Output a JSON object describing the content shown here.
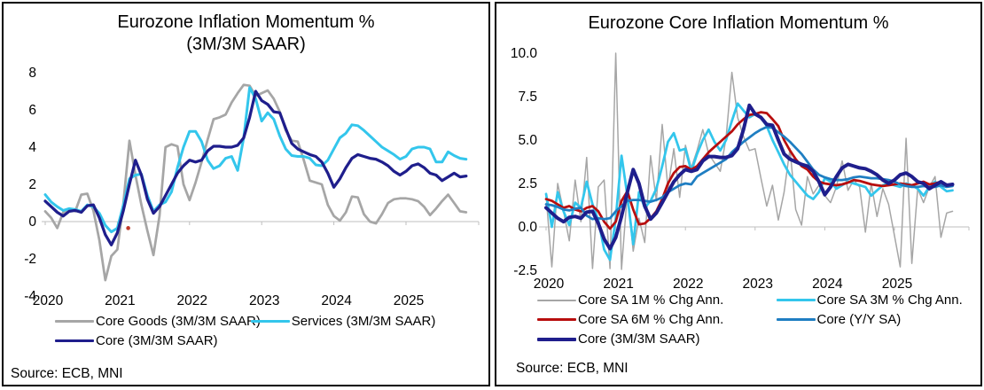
{
  "source_label": "Source: ECB, MNI",
  "chart_data": [
    {
      "type": "line",
      "title": "Eurozone Inflation Momentum %",
      "subtitle": "(3M/3M SAAR)",
      "source": "Source: ECB, MNI",
      "x_start_year": 2020,
      "x_frequency": "monthly",
      "xticks": [
        "2020",
        "2021",
        "2022",
        "2023",
        "2024",
        "2025"
      ],
      "ylim": [
        -4,
        8
      ],
      "yticks": [
        8,
        6,
        4,
        2,
        0,
        -2,
        -4
      ],
      "ytick_labels": [
        "8",
        "6",
        "4",
        "2",
        "0",
        "-2",
        "-4"
      ],
      "axis_color": "#BFBFBF",
      "legend_position": "bottom",
      "grid": false,
      "marker_point": {
        "x_year": 2021.15,
        "value": -0.35,
        "color": "#C0392B",
        "name": "red-dot-marker"
      },
      "series": [
        {
          "name": "Core Goods (3M/3M SAAR)",
          "color": "#A6A6A6",
          "width": 2.75,
          "values": [
            0.55,
            0.2,
            -0.35,
            0.5,
            0.7,
            0.55,
            1.45,
            1.5,
            0.6,
            -1.0,
            -3.15,
            -1.85,
            -1.5,
            1.0,
            4.35,
            2.5,
            0.9,
            -0.5,
            -1.8,
            0.3,
            4.0,
            4.15,
            4.05,
            2.0,
            1.15,
            2.1,
            3.2,
            4.4,
            5.5,
            5.6,
            5.75,
            6.4,
            6.9,
            7.35,
            7.3,
            6.75,
            6.9,
            7.05,
            6.6,
            5.9,
            4.9,
            4.35,
            4.3,
            3.3,
            2.2,
            2.1,
            2.0,
            0.9,
            0.3,
            0.05,
            0.5,
            1.35,
            1.3,
            0.4,
            0.0,
            -0.1,
            0.4,
            1.0,
            1.2,
            1.25,
            1.25,
            1.2,
            1.1,
            0.8,
            0.35,
            0.7,
            1.1,
            1.45,
            1.0,
            0.55,
            0.5
          ]
        },
        {
          "name": "Services (3M/3M SAAR)",
          "color": "#33C6EC",
          "width": 3,
          "values": [
            1.45,
            1.05,
            0.8,
            0.6,
            0.7,
            0.65,
            0.55,
            0.9,
            0.8,
            0.45,
            -0.2,
            -0.55,
            -0.35,
            0.9,
            2.3,
            2.5,
            2.55,
            1.4,
            0.55,
            0.9,
            1.05,
            1.6,
            2.9,
            4.0,
            4.85,
            4.85,
            4.3,
            3.3,
            2.85,
            3.0,
            3.4,
            3.5,
            2.75,
            4.5,
            7.2,
            6.6,
            5.4,
            5.85,
            5.5,
            4.6,
            3.9,
            3.55,
            3.5,
            3.5,
            3.4,
            3.05,
            3.0,
            3.3,
            3.9,
            4.5,
            4.75,
            5.2,
            5.15,
            4.9,
            4.6,
            4.3,
            4.0,
            3.8,
            3.6,
            3.35,
            3.5,
            3.9,
            4.0,
            4.0,
            3.9,
            3.2,
            3.2,
            3.75,
            3.55,
            3.4,
            3.35
          ]
        },
        {
          "name": "Core (3M/3M SAAR)",
          "color": "#1F1E8C",
          "width": 3.25,
          "values": [
            1.1,
            0.8,
            0.5,
            0.3,
            0.55,
            0.6,
            0.5,
            0.85,
            0.9,
            0.2,
            -0.7,
            -1.25,
            -0.6,
            0.6,
            2.0,
            3.3,
            2.5,
            1.2,
            0.45,
            0.8,
            1.4,
            2.0,
            2.6,
            3.0,
            3.3,
            3.2,
            3.3,
            3.8,
            4.05,
            4.05,
            4.0,
            4.0,
            4.1,
            4.5,
            5.6,
            7.0,
            6.5,
            6.3,
            5.9,
            5.85,
            5.0,
            4.2,
            3.9,
            3.75,
            3.6,
            3.5,
            3.2,
            2.6,
            1.85,
            2.3,
            2.9,
            3.4,
            3.6,
            3.5,
            3.4,
            3.35,
            3.2,
            3.0,
            2.7,
            2.5,
            2.7,
            3.0,
            3.1,
            2.9,
            2.6,
            2.5,
            2.2,
            2.4,
            2.6,
            2.4,
            2.45
          ]
        }
      ]
    },
    {
      "type": "line",
      "title": "Eurozone Core Inflation Momentum %",
      "subtitle": "",
      "source": "Source: ECB, MNI",
      "x_start_year": 2020,
      "x_frequency": "monthly",
      "xticks": [
        "2020",
        "2021",
        "2022",
        "2023",
        "2024",
        "2025"
      ],
      "ylim": [
        -2.5,
        10
      ],
      "yticks": [
        10,
        7.5,
        5,
        2.5,
        0,
        -2.5
      ],
      "ytick_labels": [
        "10.0",
        "7.5",
        "5.0",
        "2.5",
        "0.0",
        "-2.5"
      ],
      "axis_color": "#BFBFBF",
      "legend_position": "bottom",
      "grid": false,
      "series": [
        {
          "name": "Core SA 1M % Chg Ann.",
          "color": "#A6A6A6",
          "width": 1.5,
          "values": [
            1.8,
            -2.3,
            2.5,
            0.9,
            -0.8,
            2.7,
            0.3,
            4.0,
            -2.4,
            2.3,
            2.7,
            -2.4,
            10.0,
            -2.45,
            2.0,
            -1.4,
            0.5,
            -0.9,
            4.1,
            1.5,
            5.9,
            2.2,
            4.5,
            1.7,
            4.7,
            3.4,
            4.4,
            5.6,
            4.2,
            3.7,
            3.2,
            5.1,
            8.9,
            6.3,
            5.2,
            4.4,
            4.5,
            2.8,
            1.2,
            2.4,
            0.4,
            2.0,
            4.5,
            1.0,
            0.1,
            2.9,
            1.9,
            2.4,
            1.8,
            1.4,
            2.3,
            3.8,
            2.1,
            2.7,
            2.3,
            -0.3,
            2.5,
            0.6,
            2.2,
            1.3,
            -0.5,
            -2.3,
            5.1,
            -2.1,
            2.2,
            1.4,
            2.3,
            2.9,
            -0.6,
            0.8,
            0.9
          ]
        },
        {
          "name": "Core SA 3M % Chg Ann.",
          "color": "#33C6EC",
          "width": 2.75,
          "values": [
            1.9,
            0.0,
            2.0,
            0.9,
            0.1,
            1.4,
            1.1,
            2.6,
            1.3,
            0.4,
            -1.3,
            -1.9,
            0.5,
            4.1,
            1.8,
            -1.0,
            2.0,
            1.1,
            1.5,
            2.2,
            3.5,
            4.9,
            5.4,
            4.4,
            4.5,
            3.2,
            4.2,
            5.0,
            5.6,
            4.9,
            4.4,
            5.0,
            6.1,
            7.1,
            6.7,
            6.3,
            6.5,
            6.3,
            5.8,
            5.0,
            4.3,
            3.6,
            3.0,
            2.6,
            2.2,
            1.8,
            1.6,
            2.0,
            2.8,
            2.6,
            2.2,
            2.4,
            2.6,
            2.5,
            2.4,
            2.3,
            1.8,
            2.1,
            2.4,
            2.5,
            2.4,
            2.3,
            2.5,
            2.4,
            2.2,
            1.8,
            2.3,
            2.6,
            2.3,
            2.05,
            2.1
          ]
        },
        {
          "name": "Core SA 6M % Chg Ann.",
          "color": "#B80E0E",
          "width": 2.75,
          "values": [
            1.6,
            1.5,
            1.3,
            1.1,
            1.2,
            1.0,
            0.9,
            1.1,
            1.2,
            0.9,
            0.3,
            -0.1,
            0.3,
            1.5,
            2.05,
            1.0,
            0.15,
            0.2,
            0.5,
            0.9,
            1.6,
            2.5,
            3.1,
            3.45,
            3.5,
            3.3,
            3.5,
            3.9,
            4.3,
            4.6,
            4.9,
            5.2,
            5.5,
            5.9,
            6.2,
            6.45,
            6.5,
            6.6,
            6.55,
            6.2,
            5.8,
            5.0,
            4.4,
            3.9,
            3.5,
            3.3,
            2.9,
            2.6,
            2.5,
            2.45,
            2.4,
            2.45,
            2.55,
            2.7,
            2.65,
            2.55,
            2.45,
            2.4,
            2.35,
            2.4,
            2.45,
            2.5,
            2.45,
            2.4,
            2.5,
            2.6,
            2.45,
            2.5,
            2.6,
            2.4,
            2.45
          ]
        },
        {
          "name": "Core (Y/Y SA)",
          "color": "#1F7EC2",
          "width": 2.75,
          "values": [
            1.3,
            1.25,
            1.15,
            1.0,
            0.95,
            1.05,
            1.1,
            0.65,
            0.45,
            0.5,
            0.45,
            0.5,
            0.9,
            1.2,
            1.5,
            1.55,
            1.55,
            1.5,
            1.45,
            1.55,
            1.7,
            2.0,
            2.2,
            2.4,
            2.5,
            2.45,
            2.9,
            3.1,
            3.3,
            3.5,
            3.7,
            3.9,
            4.3,
            4.6,
            4.9,
            5.15,
            5.4,
            5.6,
            5.75,
            5.7,
            5.45,
            5.2,
            4.9,
            4.55,
            4.2,
            3.75,
            3.3,
            3.0,
            2.85,
            2.75,
            2.7,
            2.7,
            2.75,
            2.85,
            2.9,
            2.85,
            2.8,
            2.8,
            2.75,
            2.7,
            2.6,
            2.45,
            2.35,
            2.3,
            2.3,
            2.35,
            2.3,
            2.3,
            2.4,
            2.3,
            2.35
          ]
        },
        {
          "name": "Core (3M/3M SAAR)",
          "color": "#1F1E8C",
          "width": 4,
          "values": [
            1.1,
            0.8,
            0.5,
            0.3,
            0.55,
            0.6,
            0.5,
            0.85,
            0.9,
            0.2,
            -0.7,
            -1.25,
            -0.6,
            0.6,
            2.0,
            3.3,
            2.5,
            1.2,
            0.45,
            0.8,
            1.4,
            2.0,
            2.6,
            3.0,
            3.3,
            3.2,
            3.3,
            3.8,
            4.05,
            4.05,
            4.0,
            4.0,
            4.1,
            4.5,
            5.6,
            7.0,
            6.5,
            6.3,
            5.9,
            5.85,
            5.0,
            4.2,
            3.9,
            3.75,
            3.6,
            3.5,
            3.2,
            2.6,
            1.85,
            2.3,
            2.9,
            3.4,
            3.6,
            3.5,
            3.4,
            3.35,
            3.2,
            3.0,
            2.7,
            2.5,
            2.7,
            3.0,
            3.1,
            2.9,
            2.6,
            2.5,
            2.2,
            2.4,
            2.6,
            2.4,
            2.45
          ]
        }
      ]
    }
  ]
}
